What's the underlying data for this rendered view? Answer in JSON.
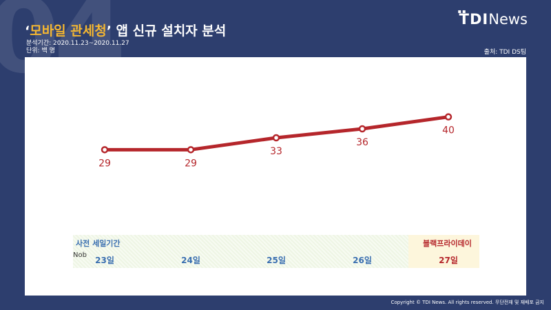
{
  "header": {
    "section_number": "04",
    "title_quote_open": "‘",
    "title_highlight": "모바일 관세청",
    "title_quote_close": "’",
    "title_rest": " 앱 신규 설치자 분석",
    "period": "분석기간: 2020.11.23~2020.11.27",
    "unit": "단위: 백 명",
    "source": "출처: TDI DS팀"
  },
  "logo": {
    "tdi": "TDI",
    "news": "News"
  },
  "footer": {
    "copyright": "Copyright © TDI News. All rights reserved. 무단전재 및 재배포 금지"
  },
  "colors": {
    "background": "#2d3e6e",
    "line": "#b5262b",
    "highlight": "#f5b731",
    "blue_label": "#3a6fb0",
    "red_label": "#b5262b"
  },
  "chart_data": {
    "type": "line",
    "categories": [
      "23일",
      "24일",
      "25일",
      "26일",
      "27일"
    ],
    "series": [
      {
        "values": [
          29,
          29,
          33,
          36,
          40
        ]
      }
    ],
    "data_labels": [
      "29",
      "29",
      "33",
      "36",
      "40"
    ],
    "ylim": [
      0,
      60
    ],
    "grid": false,
    "periods": [
      {
        "label": "사전 세일기간",
        "from": "23일",
        "to": "26일"
      },
      {
        "label": "블랙프라이데이",
        "from": "27일",
        "to": "27일"
      }
    ],
    "row_label": "Nob"
  }
}
